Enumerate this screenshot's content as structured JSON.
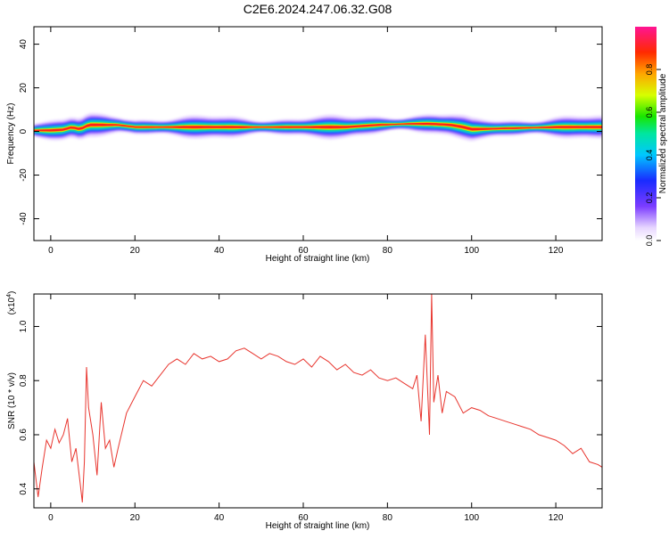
{
  "title": "C2E6.2024.247.06.32.G08",
  "chart_data": [
    {
      "type": "heatmap",
      "xlabel": "Height of straight line (km)",
      "ylabel": "Frequency (Hz)",
      "xlim": [
        -4,
        131
      ],
      "ylim": [
        -50,
        48
      ],
      "xticks": [
        0,
        20,
        40,
        60,
        80,
        100,
        120
      ],
      "yticks": [
        -40,
        -20,
        0,
        20,
        40
      ],
      "colorbar": {
        "label": "Normalized spectral amplitude",
        "range": [
          0,
          1
        ],
        "ticks": [
          0.0,
          0.2,
          0.4,
          0.6,
          0.8
        ],
        "tick_labels": [
          "0.0",
          "0.2",
          "0.4",
          "0.6",
          "0.8"
        ]
      },
      "ridge": {
        "x": [
          -4,
          0,
          3,
          5,
          7,
          9,
          13,
          16,
          20,
          30,
          40,
          50,
          60,
          70,
          78,
          85,
          90,
          95,
          98,
          100,
          110,
          120,
          131
        ],
        "frequency": [
          0.5,
          0.5,
          0.8,
          2,
          1,
          3,
          3,
          3,
          2,
          2,
          2,
          2,
          2,
          2,
          3,
          3.5,
          3.5,
          3,
          2,
          1,
          1.5,
          2,
          2
        ]
      },
      "grid": false
    },
    {
      "type": "line",
      "xlabel": "Height of straight line (km)",
      "ylabel": "SNR (10 * v/v)",
      "yscale_label": "(x10",
      "yscale_exp": "4",
      "yscale_close": ")",
      "xlim": [
        -4,
        131
      ],
      "ylim": [
        0.33,
        1.12
      ],
      "xticks": [
        0,
        20,
        40,
        60,
        80,
        100,
        120
      ],
      "yticks": [
        0.4,
        0.6,
        0.8,
        1.0
      ],
      "ytick_labels": [
        "0.4",
        "0.6",
        "0.8",
        "1.0"
      ],
      "color": "#e8352e",
      "series": [
        {
          "x": [
            -4,
            -3,
            -2,
            -1,
            0,
            1,
            2,
            3,
            4,
            5,
            6,
            7,
            7.5,
            8,
            8.5,
            9,
            10,
            11,
            12,
            13,
            14,
            15,
            16,
            18,
            20,
            22,
            24,
            26,
            28,
            30,
            32,
            34,
            36,
            38,
            40,
            42,
            44,
            46,
            48,
            50,
            52,
            54,
            56,
            58,
            60,
            62,
            64,
            66,
            68,
            70,
            72,
            74,
            76,
            78,
            80,
            82,
            84,
            86,
            87,
            88,
            89,
            90,
            90.5,
            91,
            92,
            93,
            94,
            96,
            98,
            100,
            102,
            104,
            106,
            108,
            110,
            112,
            114,
            116,
            118,
            120,
            122,
            124,
            126,
            128,
            130,
            131
          ],
          "y": [
            0.5,
            0.37,
            0.48,
            0.58,
            0.55,
            0.62,
            0.57,
            0.6,
            0.66,
            0.5,
            0.55,
            0.42,
            0.35,
            0.5,
            0.85,
            0.7,
            0.6,
            0.45,
            0.72,
            0.55,
            0.58,
            0.48,
            0.55,
            0.68,
            0.74,
            0.8,
            0.78,
            0.82,
            0.86,
            0.88,
            0.86,
            0.9,
            0.88,
            0.89,
            0.87,
            0.88,
            0.91,
            0.92,
            0.9,
            0.88,
            0.9,
            0.89,
            0.87,
            0.86,
            0.88,
            0.85,
            0.89,
            0.87,
            0.84,
            0.86,
            0.83,
            0.82,
            0.84,
            0.81,
            0.8,
            0.81,
            0.79,
            0.77,
            0.82,
            0.65,
            0.97,
            0.6,
            1.12,
            0.72,
            0.82,
            0.68,
            0.76,
            0.74,
            0.68,
            0.7,
            0.69,
            0.67,
            0.66,
            0.65,
            0.64,
            0.63,
            0.62,
            0.6,
            0.59,
            0.58,
            0.56,
            0.53,
            0.55,
            0.5,
            0.49,
            0.48
          ]
        }
      ],
      "grid": false
    }
  ]
}
